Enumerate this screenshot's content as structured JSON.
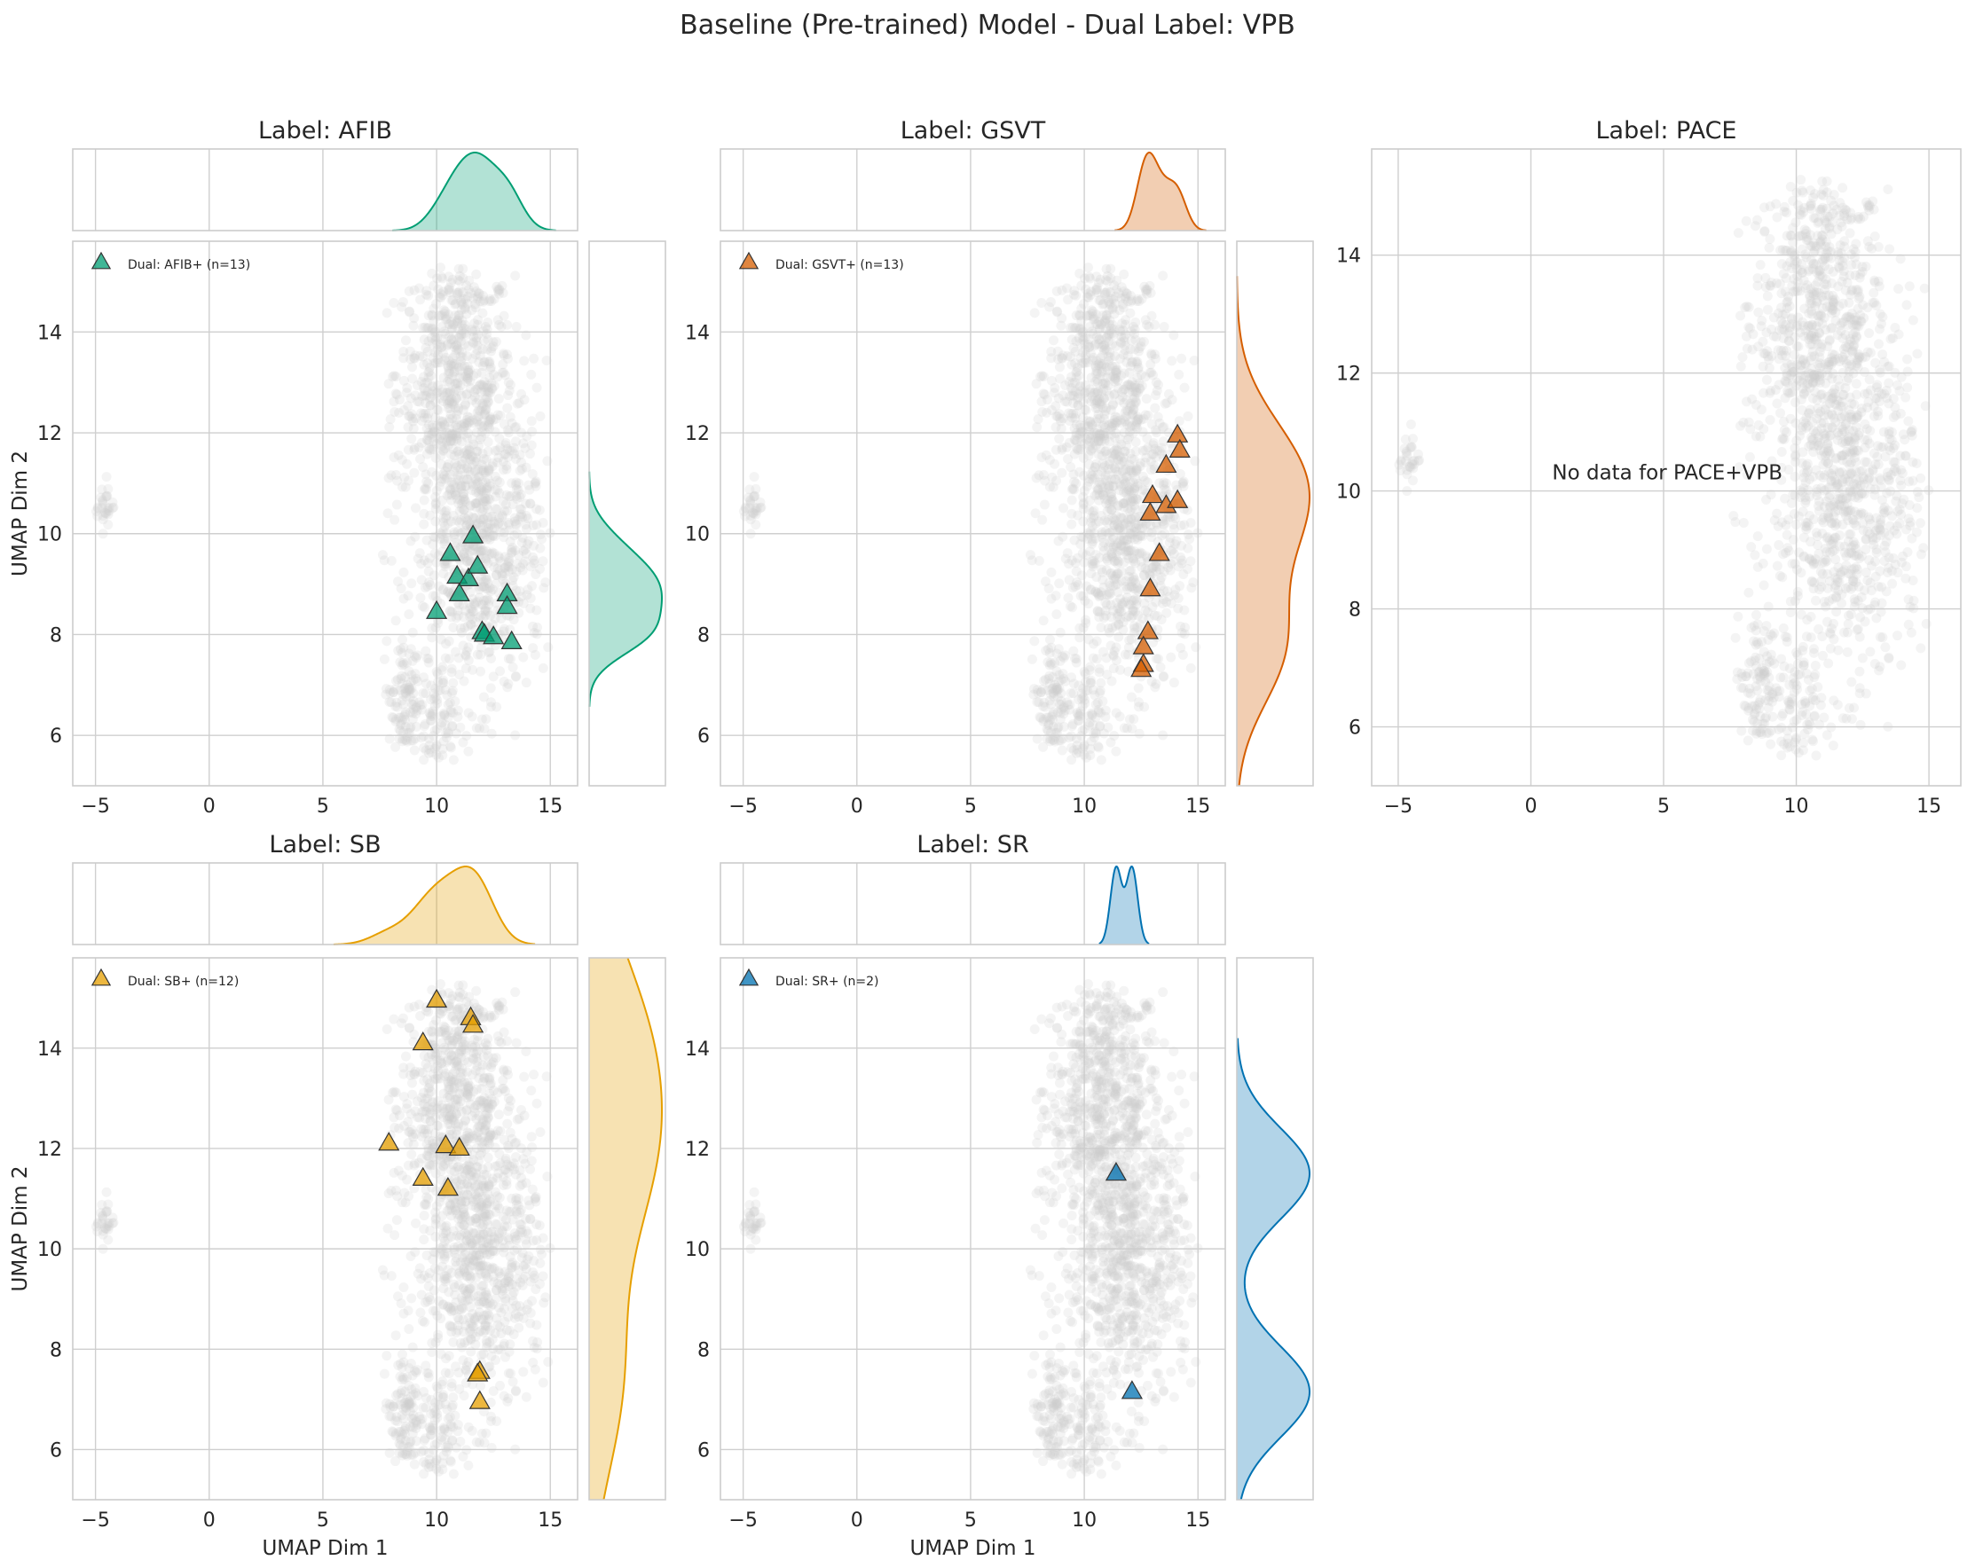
{
  "title": "Baseline (Pre-trained) Model - Dual Label: VPB",
  "colors": {
    "AFIB": "#009E73",
    "GSVT": "#D55E00",
    "SB": "#E69F00",
    "SR": "#0072B2",
    "background_points": "#cccccc"
  },
  "chart_data": [
    {
      "type": "scatter",
      "label": "AFIB",
      "title": "Label: AFIB",
      "xlabel": "",
      "ylabel": "UMAP Dim 2",
      "xlim": [
        -6,
        16.2
      ],
      "ylim": [
        5,
        15.8
      ],
      "xticks": [
        -5,
        0,
        5,
        10,
        15
      ],
      "yticks": [
        6,
        8,
        10,
        12,
        14
      ],
      "legend": "Dual: AFIB+ (n=13)",
      "legend_position": "top-left",
      "marginals": true,
      "points": [
        [
          10.6,
          9.6
        ],
        [
          11.6,
          9.95
        ],
        [
          10.9,
          9.15
        ],
        [
          11.4,
          9.1
        ],
        [
          11.8,
          9.35
        ],
        [
          11.0,
          8.8
        ],
        [
          10.0,
          8.45
        ],
        [
          12.0,
          8.05
        ],
        [
          12.1,
          8.0
        ],
        [
          12.5,
          7.95
        ],
        [
          13.1,
          8.8
        ],
        [
          13.1,
          8.55
        ],
        [
          13.3,
          7.85
        ]
      ]
    },
    {
      "type": "scatter",
      "label": "GSVT",
      "title": "Label: GSVT",
      "xlabel": "",
      "ylabel": "",
      "xlim": [
        -6,
        16.2
      ],
      "ylim": [
        5,
        15.8
      ],
      "xticks": [
        -5,
        0,
        5,
        10,
        15
      ],
      "yticks": [
        6,
        8,
        10,
        12,
        14
      ],
      "legend": "Dual: GSVT+ (n=13)",
      "legend_position": "top-left",
      "marginals": true,
      "points": [
        [
          14.1,
          11.95
        ],
        [
          14.2,
          11.65
        ],
        [
          13.6,
          11.35
        ],
        [
          13.0,
          10.75
        ],
        [
          13.6,
          10.55
        ],
        [
          14.1,
          10.65
        ],
        [
          12.9,
          10.4
        ],
        [
          13.3,
          9.6
        ],
        [
          12.9,
          8.9
        ],
        [
          12.8,
          8.05
        ],
        [
          12.6,
          7.75
        ],
        [
          12.6,
          7.4
        ],
        [
          12.5,
          7.3
        ]
      ]
    },
    {
      "type": "scatter",
      "label": "PACE",
      "title": "Label: PACE",
      "xlabel": "",
      "ylabel": "",
      "xlim": [
        -6,
        16.2
      ],
      "ylim": [
        5,
        15.8
      ],
      "xticks": [
        -5,
        0,
        5,
        10,
        15
      ],
      "yticks": [
        6,
        8,
        10,
        12,
        14
      ],
      "legend": "",
      "marginals": false,
      "annotation": "No data for PACE+VPB",
      "points": []
    },
    {
      "type": "scatter",
      "label": "SB",
      "title": "Label: SB",
      "xlabel": "UMAP Dim 1",
      "ylabel": "UMAP Dim 2",
      "xlim": [
        -6,
        16.2
      ],
      "ylim": [
        5,
        15.8
      ],
      "xticks": [
        -5,
        0,
        5,
        10,
        15
      ],
      "yticks": [
        6,
        8,
        10,
        12,
        14
      ],
      "legend": "Dual: SB+ (n=12)",
      "legend_position": "top-left",
      "marginals": true,
      "points": [
        [
          10.0,
          14.95
        ],
        [
          9.4,
          14.1
        ],
        [
          11.5,
          14.6
        ],
        [
          11.6,
          14.45
        ],
        [
          7.9,
          12.1
        ],
        [
          10.4,
          12.05
        ],
        [
          11.0,
          12.0
        ],
        [
          9.4,
          11.4
        ],
        [
          10.5,
          11.2
        ],
        [
          11.9,
          7.55
        ],
        [
          11.8,
          7.5
        ],
        [
          11.9,
          6.95
        ]
      ]
    },
    {
      "type": "scatter",
      "label": "SR",
      "title": "Label: SR",
      "xlabel": "UMAP Dim 1",
      "ylabel": "",
      "xlim": [
        -6,
        16.2
      ],
      "ylim": [
        5,
        15.8
      ],
      "xticks": [
        -5,
        0,
        5,
        10,
        15
      ],
      "yticks": [
        6,
        8,
        10,
        12,
        14
      ],
      "legend": "Dual: SR+ (n=2)",
      "legend_position": "top-left",
      "marginals": true,
      "points": [
        [
          11.4,
          11.5
        ],
        [
          12.1,
          7.15
        ]
      ]
    }
  ]
}
